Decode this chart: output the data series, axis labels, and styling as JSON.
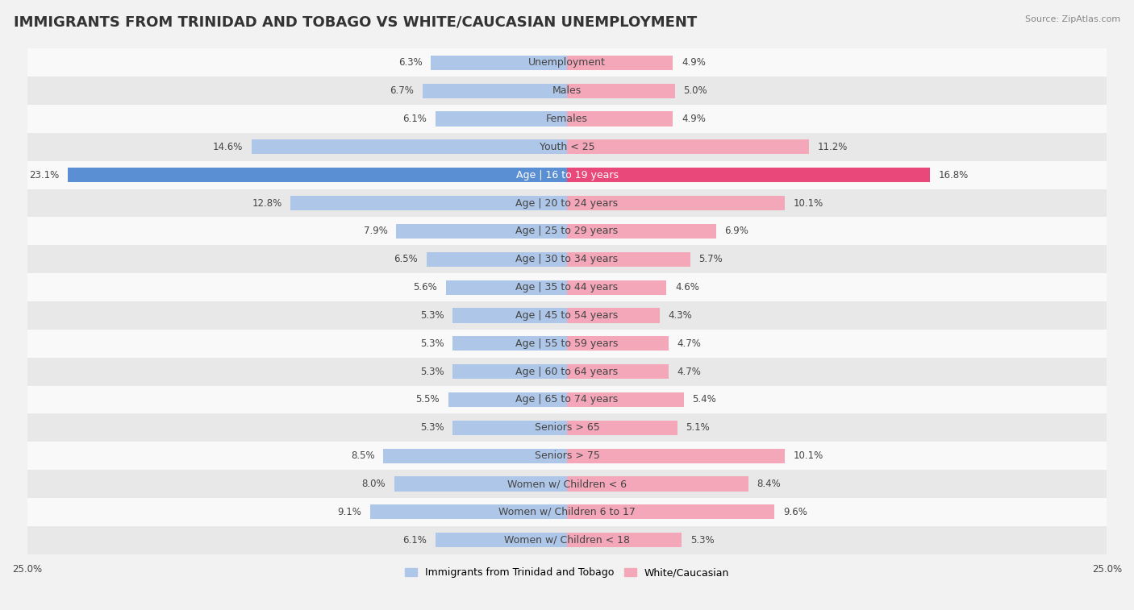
{
  "title": "IMMIGRANTS FROM TRINIDAD AND TOBAGO VS WHITE/CAUCASIAN UNEMPLOYMENT",
  "source": "Source: ZipAtlas.com",
  "categories": [
    "Unemployment",
    "Males",
    "Females",
    "Youth < 25",
    "Age | 16 to 19 years",
    "Age | 20 to 24 years",
    "Age | 25 to 29 years",
    "Age | 30 to 34 years",
    "Age | 35 to 44 years",
    "Age | 45 to 54 years",
    "Age | 55 to 59 years",
    "Age | 60 to 64 years",
    "Age | 65 to 74 years",
    "Seniors > 65",
    "Seniors > 75",
    "Women w/ Children < 6",
    "Women w/ Children 6 to 17",
    "Women w/ Children < 18"
  ],
  "left_values": [
    6.3,
    6.7,
    6.1,
    14.6,
    23.1,
    12.8,
    7.9,
    6.5,
    5.6,
    5.3,
    5.3,
    5.3,
    5.5,
    5.3,
    8.5,
    8.0,
    9.1,
    6.1
  ],
  "right_values": [
    4.9,
    5.0,
    4.9,
    11.2,
    16.8,
    10.1,
    6.9,
    5.7,
    4.6,
    4.3,
    4.7,
    4.7,
    5.4,
    5.1,
    10.1,
    8.4,
    9.6,
    5.3
  ],
  "left_color": "#aec6e8",
  "right_color": "#f4a7b9",
  "left_highlight_color": "#5b8fd4",
  "right_highlight_color": "#e8487a",
  "highlight_row": 4,
  "background_color": "#f2f2f2",
  "row_bg_light": "#f9f9f9",
  "row_bg_dark": "#e8e8e8",
  "xlim": 25.0,
  "legend_left": "Immigrants from Trinidad and Tobago",
  "legend_right": "White/Caucasian",
  "title_fontsize": 13,
  "label_fontsize": 9,
  "value_fontsize": 8.5
}
